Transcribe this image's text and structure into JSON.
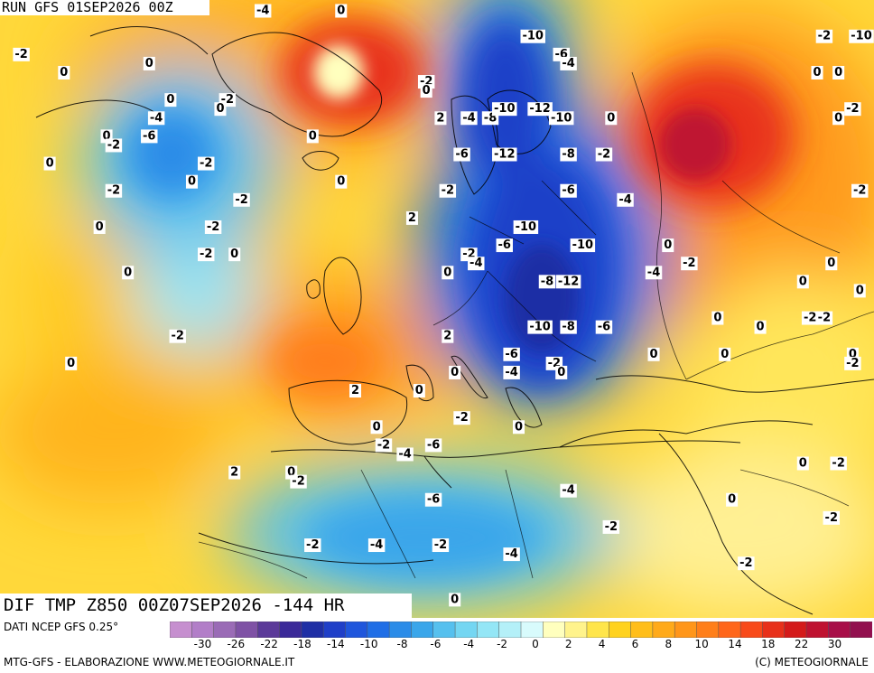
{
  "header": {
    "run_title": "RUN GFS 01SEP2026 00Z"
  },
  "map": {
    "field_title": "DIF TMP Z850 00Z07SEP2026 -144 HR",
    "labels": [
      {
        "text": "-4",
        "lon": -18,
        "lat": 72
      },
      {
        "text": "0",
        "lon": -7,
        "lat": 72
      },
      {
        "text": "-2",
        "lon": -52,
        "lat": 67
      },
      {
        "text": "0",
        "lon": -46,
        "lat": 65
      },
      {
        "text": "0",
        "lon": -34,
        "lat": 66
      },
      {
        "text": "-4",
        "lon": -33,
        "lat": 60
      },
      {
        "text": "-6",
        "lon": -34,
        "lat": 58
      },
      {
        "text": "0",
        "lon": -40,
        "lat": 58
      },
      {
        "text": "-2",
        "lon": -39,
        "lat": 57
      },
      {
        "text": "0",
        "lon": -48,
        "lat": 55
      },
      {
        "text": "-2",
        "lon": -26,
        "lat": 55
      },
      {
        "text": "0",
        "lon": -28,
        "lat": 53
      },
      {
        "text": "-2",
        "lon": -39,
        "lat": 52
      },
      {
        "text": "-2",
        "lon": -21,
        "lat": 51
      },
      {
        "text": "-2",
        "lon": -25,
        "lat": 48
      },
      {
        "text": "0",
        "lon": -41,
        "lat": 48
      },
      {
        "text": "-2",
        "lon": -26,
        "lat": 45
      },
      {
        "text": "0",
        "lon": -22,
        "lat": 45
      },
      {
        "text": "0",
        "lon": -37,
        "lat": 43
      },
      {
        "text": "-2",
        "lon": -30,
        "lat": 36
      },
      {
        "text": "0",
        "lon": -45,
        "lat": 33
      },
      {
        "text": "0",
        "lon": -31,
        "lat": 62
      },
      {
        "text": "-2",
        "lon": -23,
        "lat": 62
      },
      {
        "text": "0",
        "lon": -24,
        "lat": 61
      },
      {
        "text": "0",
        "lon": -11,
        "lat": 58
      },
      {
        "text": "0",
        "lon": -7,
        "lat": 53
      },
      {
        "text": "-2",
        "lon": 5,
        "lat": 64
      },
      {
        "text": "0",
        "lon": 5,
        "lat": 63
      },
      {
        "text": "2",
        "lon": 7,
        "lat": 60
      },
      {
        "text": "-4",
        "lon": 11,
        "lat": 60
      },
      {
        "text": "-8",
        "lon": 14,
        "lat": 60
      },
      {
        "text": "-10",
        "lon": 20,
        "lat": 69
      },
      {
        "text": "-6",
        "lon": 24,
        "lat": 67
      },
      {
        "text": "-4",
        "lon": 25,
        "lat": 66
      },
      {
        "text": "-10",
        "lon": 16,
        "lat": 61
      },
      {
        "text": "-12",
        "lon": 21,
        "lat": 61
      },
      {
        "text": "-10",
        "lon": 24,
        "lat": 60
      },
      {
        "text": "0",
        "lon": 31,
        "lat": 60
      },
      {
        "text": "-6",
        "lon": 10,
        "lat": 56
      },
      {
        "text": "-12",
        "lon": 16,
        "lat": 56
      },
      {
        "text": "-8",
        "lon": 25,
        "lat": 56
      },
      {
        "text": "-2",
        "lon": 30,
        "lat": 56
      },
      {
        "text": "-6",
        "lon": 25,
        "lat": 52
      },
      {
        "text": "-4",
        "lon": 33,
        "lat": 51
      },
      {
        "text": "-2",
        "lon": 8,
        "lat": 52
      },
      {
        "text": "2",
        "lon": 3,
        "lat": 49
      },
      {
        "text": "-10",
        "lon": 19,
        "lat": 48
      },
      {
        "text": "-10",
        "lon": 27,
        "lat": 46
      },
      {
        "text": "-6",
        "lon": 16,
        "lat": 46
      },
      {
        "text": "-2",
        "lon": 11,
        "lat": 45
      },
      {
        "text": "-4",
        "lon": 12,
        "lat": 44
      },
      {
        "text": "0",
        "lon": 8,
        "lat": 43
      },
      {
        "text": "-2",
        "lon": 42,
        "lat": 44
      },
      {
        "text": "0",
        "lon": 39,
        "lat": 46
      },
      {
        "text": "-8",
        "lon": 22,
        "lat": 42
      },
      {
        "text": "-12",
        "lon": 25,
        "lat": 42
      },
      {
        "text": "-4",
        "lon": 37,
        "lat": 43
      },
      {
        "text": "0",
        "lon": 58,
        "lat": 42
      },
      {
        "text": "-10",
        "lon": 21,
        "lat": 37
      },
      {
        "text": "-8",
        "lon": 25,
        "lat": 37
      },
      {
        "text": "-6",
        "lon": 30,
        "lat": 37
      },
      {
        "text": "2",
        "lon": 8,
        "lat": 36
      },
      {
        "text": "-6",
        "lon": 17,
        "lat": 34
      },
      {
        "text": "-4",
        "lon": 17,
        "lat": 32
      },
      {
        "text": "-2",
        "lon": 23,
        "lat": 33
      },
      {
        "text": "0",
        "lon": 24,
        "lat": 32
      },
      {
        "text": "0",
        "lon": 9,
        "lat": 32
      },
      {
        "text": "0",
        "lon": 46,
        "lat": 38
      },
      {
        "text": "0",
        "lon": 37,
        "lat": 34
      },
      {
        "text": "0",
        "lon": 47,
        "lat": 34
      },
      {
        "text": "0",
        "lon": 52,
        "lat": 37
      },
      {
        "text": "-2",
        "lon": 59,
        "lat": 38
      },
      {
        "text": "-2",
        "lon": 61,
        "lat": 38
      },
      {
        "text": "0",
        "lon": 65,
        "lat": 34
      },
      {
        "text": "-2",
        "lon": 65,
        "lat": 33
      },
      {
        "text": "0",
        "lon": 66,
        "lat": 41
      },
      {
        "text": "0",
        "lon": 62,
        "lat": 44
      },
      {
        "text": "2",
        "lon": -5,
        "lat": 30
      },
      {
        "text": "0",
        "lon": 4,
        "lat": 30
      },
      {
        "text": "-2",
        "lon": 10,
        "lat": 27
      },
      {
        "text": "0",
        "lon": -2,
        "lat": 26
      },
      {
        "text": "-2",
        "lon": -1,
        "lat": 24
      },
      {
        "text": "-6",
        "lon": 6,
        "lat": 24
      },
      {
        "text": "-4",
        "lon": 2,
        "lat": 23
      },
      {
        "text": "0",
        "lon": 18,
        "lat": 26
      },
      {
        "text": "2",
        "lon": -22,
        "lat": 21
      },
      {
        "text": "0",
        "lon": -14,
        "lat": 21
      },
      {
        "text": "-2",
        "lon": -13,
        "lat": 20
      },
      {
        "text": "-6",
        "lon": 6,
        "lat": 18
      },
      {
        "text": "-4",
        "lon": 25,
        "lat": 19
      },
      {
        "text": "-2",
        "lon": 31,
        "lat": 15
      },
      {
        "text": "-2",
        "lon": -11,
        "lat": 13
      },
      {
        "text": "-4",
        "lon": -2,
        "lat": 13
      },
      {
        "text": "-2",
        "lon": 7,
        "lat": 13
      },
      {
        "text": "-4",
        "lon": 17,
        "lat": 12
      },
      {
        "text": "0",
        "lon": 58,
        "lat": 22
      },
      {
        "text": "-2",
        "lon": 63,
        "lat": 22
      },
      {
        "text": "0",
        "lon": 48,
        "lat": 18
      },
      {
        "text": "-2",
        "lon": 62,
        "lat": 16
      },
      {
        "text": "-2",
        "lon": 50,
        "lat": 11
      },
      {
        "text": "0",
        "lon": 9,
        "lat": 7
      },
      {
        "text": "-2",
        "lon": 61,
        "lat": 69
      },
      {
        "text": "-10",
        "lon": 67,
        "lat": 69
      },
      {
        "text": "0",
        "lon": 63,
        "lat": 65
      },
      {
        "text": "0",
        "lon": 60,
        "lat": 65
      },
      {
        "text": "-2",
        "lon": 65,
        "lat": 61
      },
      {
        "text": "0",
        "lon": 63,
        "lat": 60
      },
      {
        "text": "-2",
        "lon": 66,
        "lat": 52
      }
    ]
  },
  "colorbar": {
    "source_label": "DATI NCEP GFS 0.25°",
    "colors": [
      "#c68fcf",
      "#b27ec8",
      "#9a6bb6",
      "#7f52a5",
      "#5b3a99",
      "#3b2a99",
      "#1f2fa5",
      "#1f3fc8",
      "#1f56dc",
      "#1f6ee6",
      "#2b8ce8",
      "#3aa6ea",
      "#56c0ee",
      "#74d6f2",
      "#94e6f6",
      "#b4f0f8",
      "#d8fbfc",
      "#ffffbe",
      "#fff38c",
      "#ffe54a",
      "#ffd21e",
      "#ffbe1a",
      "#ffaa1a",
      "#ff961a",
      "#ff7f1a",
      "#ff661a",
      "#f84a1a",
      "#e8301a",
      "#d41a1a",
      "#bf1230",
      "#a80e48",
      "#92114f"
    ],
    "tick_labels": [
      "-30",
      "-26",
      "-22",
      "-18",
      "-14",
      "-10",
      "-8",
      "-6",
      "-4",
      "-2",
      "0",
      "2",
      "4",
      "6",
      "8",
      "10",
      "14",
      "18",
      "22",
      "30"
    ]
  },
  "footer": {
    "left": "MTG-GFS - ELABORAZIONE WWW.METEOGIORNALE.IT",
    "right": "(C) METEOGIORNALE"
  }
}
